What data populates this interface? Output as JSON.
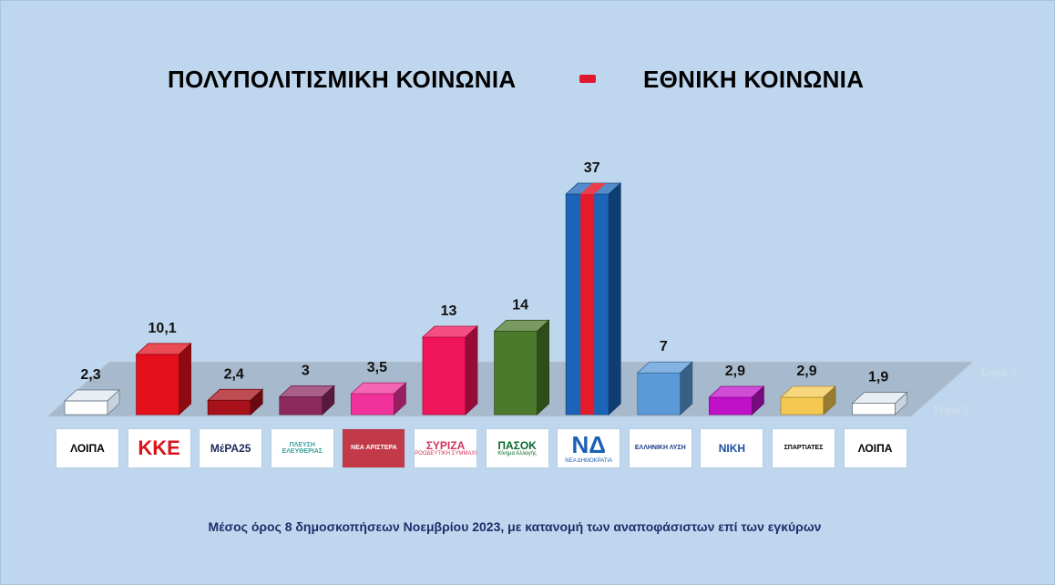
{
  "title": {
    "left": "ΠΟΛΥΠΟΛΙΤΙΣΜΙΚΗ ΚΟΙΝΩΝΙΑ",
    "right": "ΕΘΝΙΚΗ ΚΟΙΝΩΝΙΑ"
  },
  "caption": "Μέσος όρος 8 δημοσκοπήσεων Νοεμβρίου 2023, με κατανομή των αναποφάσιστων επί των εγκύρων",
  "series_labels": [
    "Σειρά 3",
    "Σειρά 1"
  ],
  "logos": [
    {
      "text": "ΛΟΙΠΑ",
      "sub": "",
      "color": "#000000",
      "bg": "#ffffff"
    },
    {
      "text": "ΚΚΕ",
      "sub": "",
      "color": "#d8141c",
      "bg": "#ffffff"
    },
    {
      "text": "ΜέΡΑ25",
      "sub": "",
      "color": "#1c2a5a",
      "bg": "#ffffff"
    },
    {
      "text": "ΠΛΕΥΣΗ ΕΛΕΥΘΕΡΙΑΣ",
      "sub": "",
      "color": "#3aa3a0",
      "bg": "#ffffff"
    },
    {
      "text": "ΝΕΑ ΑΡΙΣΤΕΡΑ",
      "sub": "",
      "color": "#ffffff",
      "bg": "#c23a4a"
    },
    {
      "text": "ΣΥΡΙΖΑ",
      "sub": "ΠΡΟΟΔΕΥΤΙΚΗ ΣΥΜΜΑΧΙΑ",
      "color": "#d3325a",
      "bg": "#ffffff"
    },
    {
      "text": "ΠΑΣΟΚ",
      "sub": "Κίνημα Αλλαγής",
      "color": "#0a6a2e",
      "bg": "#ffffff"
    },
    {
      "text": "ΝΔ",
      "sub": "ΝΕΑ ΔΗΜΟΚΡΑΤΙΑ",
      "color": "#1a5fb4",
      "bg": "#ffffff"
    },
    {
      "text": "ΕΛΛΗΝΙΚΗ ΛΥΣΗ",
      "sub": "",
      "color": "#1a3a8a",
      "bg": "#ffffff"
    },
    {
      "text": "ΝΙΚΗ",
      "sub": "",
      "color": "#1a4fa0",
      "bg": "#ffffff"
    },
    {
      "text": "ΣΠΑΡΤΙΑΤΕΣ",
      "sub": "",
      "color": "#000000",
      "bg": "#ffffff"
    },
    {
      "text": "ΛΟΙΠΑ",
      "sub": "",
      "color": "#000000",
      "bg": "#ffffff"
    }
  ],
  "chart_data": {
    "type": "bar",
    "title": "",
    "xlabel": "",
    "ylabel": "",
    "categories": [
      "ΛΟΙΠΑ",
      "ΚΚΕ",
      "ΜέΡΑ25",
      "ΠΛΕΥΣΗ ΕΛΕΥΘΕΡΙΑΣ",
      "ΝΕΑ ΑΡΙΣΤΕΡΑ",
      "ΣΥΡΙΖΑ",
      "ΠΑΣΟΚ",
      "ΝΔ",
      "ΕΛΛΗΝΙΚΗ ΛΥΣΗ",
      "ΝΙΚΗ",
      "ΣΠΑΡΤΙΑΤΕΣ",
      "ΛΟΙΠΑ"
    ],
    "values": [
      2.3,
      10.1,
      2.4,
      3,
      3.5,
      13,
      14,
      37,
      7,
      2.9,
      2.9,
      1.9
    ],
    "value_labels": [
      "2,3",
      "10,1",
      "2,4",
      "3",
      "3,5",
      "13",
      "14",
      "37",
      "7",
      "2,9",
      "2,9",
      "1,9"
    ],
    "colors": [
      "#ffffff",
      "#e3101b",
      "#a8101a",
      "#8c2a60",
      "#f0329a",
      "#f0145a",
      "#4c7a2c",
      "#1b64b8",
      "#5a9ad8",
      "#c010c8",
      "#f4c850",
      "#ffffff"
    ],
    "highlight_stripe": {
      "category": "ΝΔ",
      "color": "#e41b2a"
    },
    "ylim": [
      0,
      37
    ],
    "grid": false,
    "legend": "none"
  }
}
